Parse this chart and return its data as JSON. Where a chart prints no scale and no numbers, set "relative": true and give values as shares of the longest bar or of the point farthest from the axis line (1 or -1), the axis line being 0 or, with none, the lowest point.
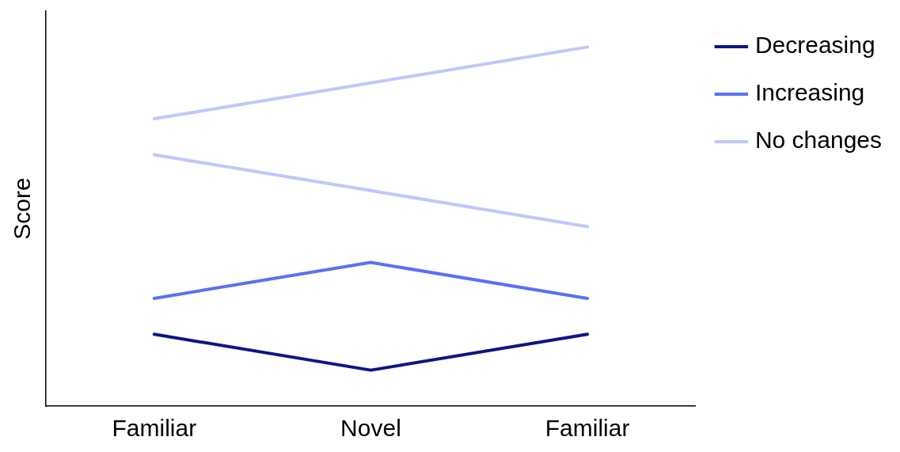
{
  "chart_data": {
    "type": "line",
    "ylabel": "Score",
    "categories": [
      "Familiar",
      "Novel",
      "Familiar"
    ],
    "relative": true,
    "grid": false,
    "legend": "right",
    "marker": "none",
    "line_style": "solid",
    "series": [
      {
        "name": "Decreasing",
        "color": "#0b1683",
        "values": [
          0.2,
          0.1,
          0.2
        ]
      },
      {
        "name": "Increasing",
        "color": "#5a70f5",
        "values": [
          0.3,
          0.4,
          0.3
        ]
      },
      {
        "name": "No changes",
        "color": "#c0c7fb",
        "values": [
          0.8,
          0.9,
          1.0
        ]
      },
      {
        "color": "#c0c7fb",
        "values": [
          0.7,
          0.6,
          0.5
        ]
      }
    ]
  }
}
